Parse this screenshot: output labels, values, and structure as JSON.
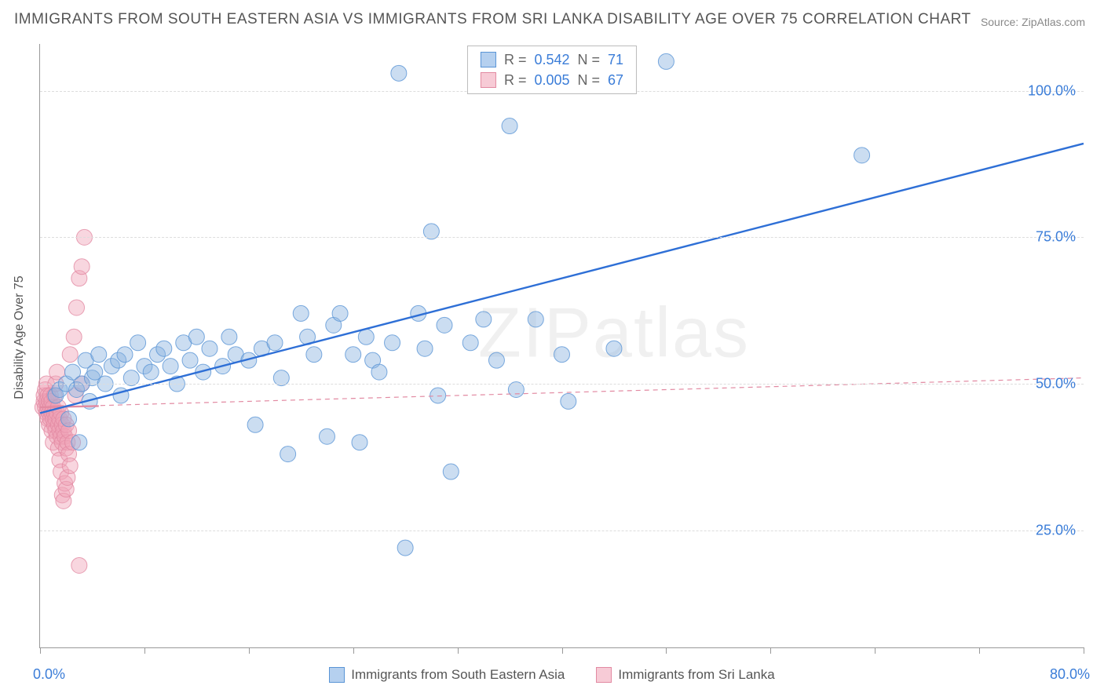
{
  "title": "IMMIGRANTS FROM SOUTH EASTERN ASIA VS IMMIGRANTS FROM SRI LANKA DISABILITY AGE OVER 75 CORRELATION CHART",
  "source": "Source: ZipAtlas.com",
  "watermark": "ZIPatlas",
  "y_axis_label": "Disability Age Over 75",
  "y_ticks": [
    {
      "value": 25,
      "label": "25.0%"
    },
    {
      "value": 50,
      "label": "50.0%"
    },
    {
      "value": 75,
      "label": "75.0%"
    },
    {
      "value": 100,
      "label": "100.0%"
    }
  ],
  "x_left": "0.0%",
  "x_right": "80.0%",
  "x_range": [
    0,
    80
  ],
  "y_range": [
    5,
    108
  ],
  "x_tick_positions": [
    0,
    8,
    16,
    24,
    32,
    40,
    48,
    56,
    64,
    72,
    80
  ],
  "legend_top": [
    {
      "swatch": "blue",
      "r_label": "R  =",
      "r_value": "0.542",
      "n_label": "N  =",
      "n_value": "71"
    },
    {
      "swatch": "pink",
      "r_label": "R  =",
      "r_value": "0.005",
      "n_label": "N  =",
      "n_value": "67"
    }
  ],
  "legend_bottom": [
    {
      "swatch": "blue",
      "label": "Immigrants from South Eastern Asia"
    },
    {
      "swatch": "pink",
      "label": "Immigrants from Sri Lanka"
    }
  ],
  "colors": {
    "blue_fill": "rgba(140,180,225,0.45)",
    "blue_stroke": "#5a95d6",
    "pink_fill": "rgba(240,165,185,0.45)",
    "pink_stroke": "#e28aa2",
    "tick_label": "#3b7dd8",
    "grid": "#dddddd",
    "axis": "#999999",
    "text": "#555555",
    "trend_blue": "#2e6fd6",
    "trend_pink": "#e28aa2"
  },
  "marker_radius": 10,
  "trend_lines": {
    "blue": {
      "x1": 0,
      "y1": 45,
      "x2": 80,
      "y2": 91,
      "width": 2.4,
      "dash": "none"
    },
    "pink_solid": {
      "x1": 0,
      "y1": 46,
      "x2": 4.5,
      "y2": 46.2,
      "width": 2.4,
      "dash": "none"
    },
    "pink_dash": {
      "x1": 0,
      "y1": 46,
      "x2": 80,
      "y2": 51,
      "width": 1.2,
      "dash": "6,5"
    }
  },
  "series_blue": [
    [
      1.2,
      48
    ],
    [
      1.5,
      49
    ],
    [
      2.0,
      50
    ],
    [
      2.2,
      44
    ],
    [
      2.5,
      52
    ],
    [
      2.8,
      49
    ],
    [
      3.0,
      40
    ],
    [
      3.2,
      50
    ],
    [
      3.5,
      54
    ],
    [
      3.8,
      47
    ],
    [
      4.0,
      51
    ],
    [
      4.2,
      52
    ],
    [
      4.5,
      55
    ],
    [
      5.0,
      50
    ],
    [
      5.5,
      53
    ],
    [
      6.0,
      54
    ],
    [
      6.2,
      48
    ],
    [
      6.5,
      55
    ],
    [
      7.0,
      51
    ],
    [
      7.5,
      57
    ],
    [
      8.0,
      53
    ],
    [
      8.5,
      52
    ],
    [
      9.0,
      55
    ],
    [
      9.5,
      56
    ],
    [
      10.0,
      53
    ],
    [
      10.5,
      50
    ],
    [
      11.0,
      57
    ],
    [
      11.5,
      54
    ],
    [
      12.0,
      58
    ],
    [
      12.5,
      52
    ],
    [
      13.0,
      56
    ],
    [
      14.0,
      53
    ],
    [
      14.5,
      58
    ],
    [
      15.0,
      55
    ],
    [
      16.0,
      54
    ],
    [
      16.5,
      43
    ],
    [
      17.0,
      56
    ],
    [
      18.0,
      57
    ],
    [
      18.5,
      51
    ],
    [
      19.0,
      38
    ],
    [
      20.0,
      62
    ],
    [
      20.5,
      58
    ],
    [
      21.0,
      55
    ],
    [
      22.0,
      41
    ],
    [
      22.5,
      60
    ],
    [
      23.0,
      62
    ],
    [
      24.0,
      55
    ],
    [
      24.5,
      40
    ],
    [
      25.0,
      58
    ],
    [
      25.5,
      54
    ],
    [
      26.0,
      52
    ],
    [
      27.0,
      57
    ],
    [
      27.5,
      103
    ],
    [
      28.0,
      22
    ],
    [
      29.0,
      62
    ],
    [
      29.5,
      56
    ],
    [
      30.0,
      76
    ],
    [
      30.5,
      48
    ],
    [
      31.0,
      60
    ],
    [
      31.5,
      35
    ],
    [
      33.0,
      57
    ],
    [
      34.0,
      61
    ],
    [
      35.0,
      54
    ],
    [
      36.0,
      94
    ],
    [
      36.5,
      49
    ],
    [
      38.0,
      61
    ],
    [
      40.0,
      55
    ],
    [
      40.5,
      47
    ],
    [
      44.0,
      56
    ],
    [
      48.0,
      105
    ],
    [
      63.0,
      89
    ]
  ],
  "series_pink": [
    [
      0.2,
      46
    ],
    [
      0.3,
      47
    ],
    [
      0.3,
      48
    ],
    [
      0.4,
      46
    ],
    [
      0.4,
      49
    ],
    [
      0.5,
      45
    ],
    [
      0.5,
      47
    ],
    [
      0.5,
      50
    ],
    [
      0.6,
      44
    ],
    [
      0.6,
      46
    ],
    [
      0.6,
      48
    ],
    [
      0.7,
      45
    ],
    [
      0.7,
      47
    ],
    [
      0.7,
      43
    ],
    [
      0.8,
      46
    ],
    [
      0.8,
      44
    ],
    [
      0.8,
      48
    ],
    [
      0.9,
      45
    ],
    [
      0.9,
      42
    ],
    [
      0.9,
      47
    ],
    [
      1.0,
      44
    ],
    [
      1.0,
      46
    ],
    [
      1.0,
      40
    ],
    [
      1.1,
      43
    ],
    [
      1.1,
      45
    ],
    [
      1.1,
      48
    ],
    [
      1.2,
      42
    ],
    [
      1.2,
      44
    ],
    [
      1.2,
      50
    ],
    [
      1.3,
      41
    ],
    [
      1.3,
      45
    ],
    [
      1.3,
      52
    ],
    [
      1.4,
      43
    ],
    [
      1.4,
      46
    ],
    [
      1.4,
      39
    ],
    [
      1.5,
      42
    ],
    [
      1.5,
      44
    ],
    [
      1.5,
      37
    ],
    [
      1.6,
      41
    ],
    [
      1.6,
      45
    ],
    [
      1.6,
      35
    ],
    [
      1.7,
      40
    ],
    [
      1.7,
      43
    ],
    [
      1.7,
      31
    ],
    [
      1.8,
      42
    ],
    [
      1.8,
      44
    ],
    [
      1.8,
      30
    ],
    [
      1.9,
      41
    ],
    [
      1.9,
      33
    ],
    [
      2.0,
      39
    ],
    [
      2.0,
      43
    ],
    [
      2.0,
      32
    ],
    [
      2.1,
      40
    ],
    [
      2.1,
      34
    ],
    [
      2.2,
      38
    ],
    [
      2.2,
      42
    ],
    [
      2.3,
      55
    ],
    [
      2.3,
      36
    ],
    [
      2.5,
      40
    ],
    [
      2.6,
      58
    ],
    [
      2.7,
      48
    ],
    [
      2.8,
      63
    ],
    [
      3.0,
      68
    ],
    [
      3.2,
      70
    ],
    [
      3.4,
      75
    ],
    [
      3.2,
      50
    ],
    [
      3.0,
      19
    ]
  ]
}
